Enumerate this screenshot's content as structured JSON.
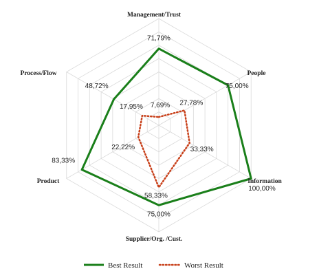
{
  "chart_data": {
    "type": "radar",
    "categories": [
      "Management/Trust",
      "People",
      "Information",
      "Supplier/Org. /Cust.",
      "Product",
      "Process/Flow"
    ],
    "category_value_labels": [
      "100,00%"
    ],
    "series": [
      {
        "name": "Best Result",
        "values": [
          71.79,
          75.0,
          100.0,
          75.0,
          83.33,
          48.72
        ],
        "labels": [
          "71,79%",
          "75,00%",
          "",
          "75,00%",
          "83,33%",
          "48,72%"
        ],
        "color": "#1a7f1a",
        "style": "solid"
      },
      {
        "name": "Worst Result",
        "values": [
          7.69,
          27.78,
          33.33,
          58.33,
          22.22,
          17.95
        ],
        "labels": [
          "7,69%",
          "27,78%",
          "33,33%",
          "58,33%",
          "22,22%",
          "17,95%"
        ],
        "color": "#c8401a",
        "style": "dotted"
      }
    ],
    "rmax": 100,
    "grid": true,
    "legend_position": "bottom"
  }
}
